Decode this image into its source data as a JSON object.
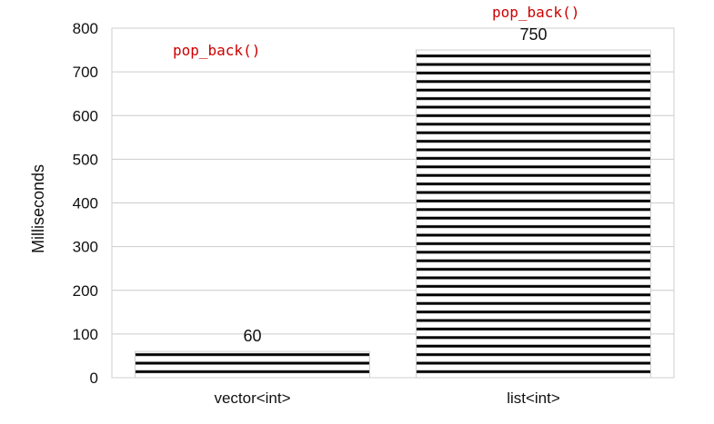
{
  "chart_data": {
    "type": "bar",
    "categories": [
      "vector<int>",
      "list<int>"
    ],
    "values": [
      60,
      750
    ],
    "value_labels": [
      "60",
      "750"
    ],
    "title": "",
    "xlabel": "",
    "ylabel": "Milliseconds",
    "ylim": [
      0,
      800
    ],
    "yticks": [
      0,
      100,
      200,
      300,
      400,
      500,
      600,
      700,
      800
    ],
    "grid": true,
    "bar_fill": "horizontal-stripes",
    "colors": {
      "bar_stripe": "#000000",
      "grid": "#cccccc",
      "frame": "#cfcfcf",
      "annotation": "#cc0000"
    },
    "annotations": [
      "pop_back()",
      "pop_back()"
    ]
  }
}
